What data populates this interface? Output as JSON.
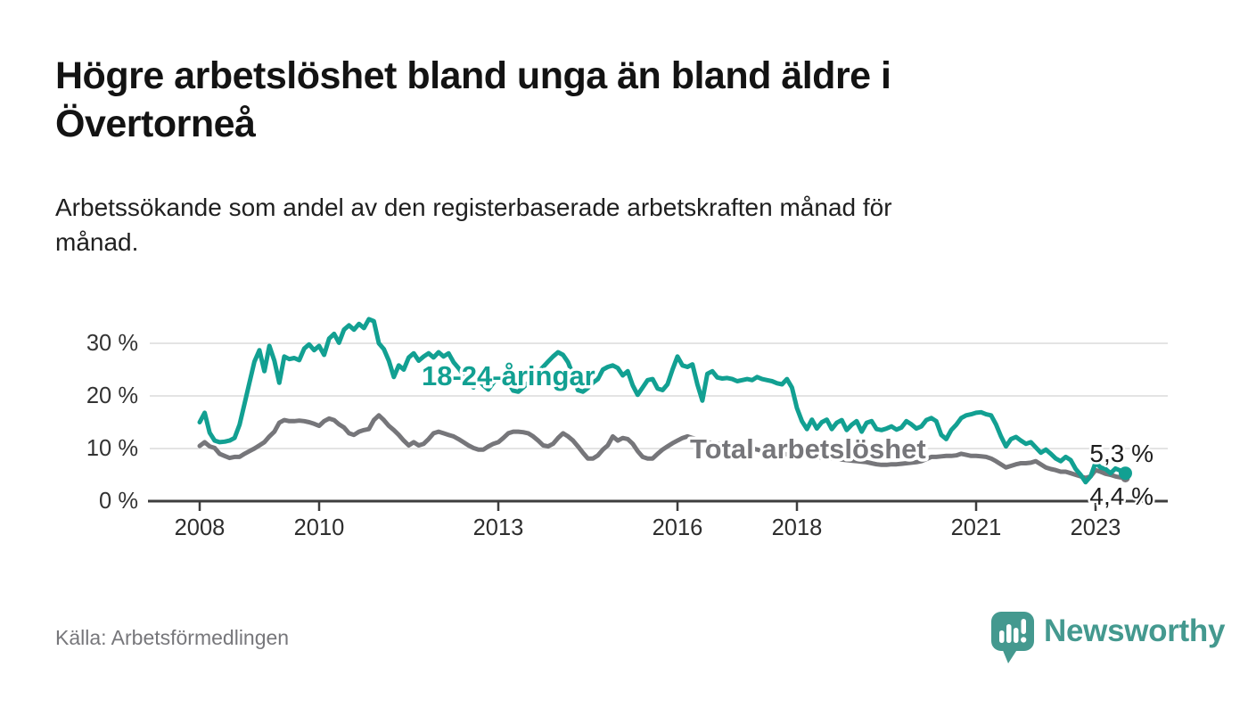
{
  "header": {
    "title_line1": "Högre arbetslöshet bland unga än bland äldre i",
    "title_line2": "Övertorneå",
    "subtitle_line1": "Arbetssökande som andel av den registerbaserade arbetskraften månad för",
    "subtitle_line2": "månad."
  },
  "footer": {
    "source": "Källa: Arbetsförmedlingen",
    "brand": "Newsworthy",
    "brand_color": "#44998f",
    "brand_icon": "speech-bubble-bar-chart-exclamation"
  },
  "chart_data": {
    "type": "line",
    "unit": "%",
    "x_monthly_start": "2008-01",
    "x_monthly_end": "2023-07",
    "x_ticks": [
      2008,
      2010,
      2013,
      2016,
      2018,
      2021,
      2023
    ],
    "y_tick_labels": [
      "30 %",
      "20 %",
      "10 %",
      "0 %"
    ],
    "ylim": [
      0,
      35
    ],
    "grid": "horizontal",
    "legend_position": "inline-labels",
    "colors": {
      "grid": "#dcdcdc",
      "axis": "#3d3d3d",
      "tick_text": "#2e2e2e"
    },
    "series": [
      {
        "id": "youth",
        "name": "18-24-åringar",
        "color": "#12a092",
        "end_label": "5,3 %",
        "end_value": 5.3,
        "values": [
          15.0,
          16.8,
          13.0,
          11.5,
          11.2,
          11.3,
          11.5,
          12.0,
          14.5,
          18.5,
          22.5,
          26.5,
          28.7,
          24.7,
          29.5,
          26.7,
          22.5,
          27.5,
          27.0,
          27.2,
          26.8,
          29.0,
          29.8,
          28.7,
          29.5,
          27.8,
          30.9,
          31.8,
          30.1,
          32.6,
          33.4,
          32.6,
          33.7,
          32.9,
          34.6,
          34.2,
          30.0,
          28.9,
          26.7,
          23.6,
          25.8,
          25.0,
          27.3,
          28.1,
          26.7,
          27.5,
          28.1,
          27.3,
          28.3,
          27.5,
          28.1,
          26.4,
          25.3,
          24.0,
          22.5,
          21.6,
          23.0,
          22.0,
          21.2,
          22.5,
          23.5,
          24.0,
          22.5,
          21.0,
          20.8,
          21.6,
          22.5,
          23.5,
          24.5,
          25.5,
          26.5,
          27.5,
          28.3,
          27.8,
          26.4,
          24.0,
          21.1,
          20.8,
          21.5,
          22.5,
          23.2,
          25.0,
          25.5,
          25.8,
          25.3,
          23.9,
          24.7,
          22.0,
          20.2,
          21.6,
          23.0,
          23.2,
          21.4,
          21.1,
          22.2,
          25.0,
          27.5,
          25.8,
          25.5,
          26.0,
          22.2,
          19.1,
          24.2,
          24.7,
          23.5,
          23.3,
          23.4,
          23.2,
          22.8,
          23.0,
          23.2,
          23.0,
          23.6,
          23.2,
          23.0,
          22.8,
          22.4,
          22.2,
          23.2,
          21.6,
          17.7,
          15.2,
          13.7,
          15.5,
          13.8,
          15.0,
          15.5,
          13.7,
          14.9,
          15.4,
          13.5,
          14.5,
          15.2,
          13.2,
          14.9,
          15.2,
          13.7,
          13.5,
          13.8,
          14.2,
          13.6,
          14.0,
          15.2,
          14.6,
          13.8,
          14.2,
          15.4,
          15.8,
          15.2,
          12.6,
          11.8,
          13.5,
          14.5,
          15.8,
          16.3,
          16.5,
          16.8,
          16.9,
          16.5,
          16.3,
          14.6,
          12.3,
          10.4,
          11.8,
          12.2,
          11.5,
          10.9,
          11.2,
          10.2,
          9.2,
          9.8,
          9.0,
          8.1,
          7.6,
          8.4,
          7.8,
          6.1,
          5.0,
          3.6,
          4.7,
          7.3,
          6.4,
          6.1,
          5.3,
          6.2,
          5.8,
          5.3
        ]
      },
      {
        "id": "total",
        "name": "Total arbetslöshet",
        "color": "#76767a",
        "end_label": "4,4 %",
        "end_value": 4.4,
        "values": [
          10.5,
          11.2,
          10.4,
          10.1,
          9.0,
          8.6,
          8.2,
          8.4,
          8.4,
          9.0,
          9.5,
          10.0,
          10.6,
          11.2,
          12.3,
          13.2,
          14.9,
          15.4,
          15.2,
          15.2,
          15.3,
          15.2,
          15.0,
          14.7,
          14.3,
          15.2,
          15.7,
          15.4,
          14.6,
          14.0,
          12.9,
          12.6,
          13.2,
          13.5,
          13.7,
          15.4,
          16.3,
          15.4,
          14.3,
          13.5,
          12.6,
          11.5,
          10.6,
          11.2,
          10.6,
          10.9,
          11.8,
          12.9,
          13.2,
          12.9,
          12.6,
          12.3,
          11.8,
          11.2,
          10.6,
          10.1,
          9.8,
          9.8,
          10.4,
          10.9,
          11.2,
          12.0,
          12.9,
          13.2,
          13.2,
          13.1,
          12.9,
          12.3,
          11.5,
          10.6,
          10.4,
          10.9,
          12.0,
          12.9,
          12.3,
          11.5,
          10.4,
          9.2,
          8.1,
          8.1,
          8.7,
          9.8,
          10.6,
          12.3,
          11.5,
          12.0,
          11.8,
          10.9,
          9.5,
          8.4,
          8.1,
          8.1,
          9.0,
          9.8,
          10.4,
          11.0,
          11.5,
          12.0,
          12.3,
          12.0,
          11.8,
          11.5,
          11.2,
          11.0,
          10.9,
          10.8,
          10.6,
          10.5,
          10.5,
          10.4,
          10.2,
          10.0,
          9.8,
          9.6,
          9.4,
          9.3,
          9.2,
          9.0,
          8.9,
          8.8,
          8.8,
          8.7,
          8.6,
          8.5,
          8.4,
          8.3,
          8.2,
          8.1,
          8.0,
          7.9,
          7.8,
          7.7,
          7.6,
          7.5,
          7.4,
          7.2,
          7.0,
          6.9,
          6.9,
          7.0,
          7.0,
          7.1,
          7.2,
          7.3,
          7.4,
          7.6,
          8.0,
          8.4,
          8.4,
          8.5,
          8.6,
          8.6,
          8.7,
          9.0,
          8.8,
          8.6,
          8.6,
          8.5,
          8.4,
          8.1,
          7.6,
          7.0,
          6.4,
          6.7,
          7.0,
          7.2,
          7.2,
          7.3,
          7.6,
          7.0,
          6.4,
          6.1,
          5.9,
          5.6,
          5.6,
          5.3,
          5.0,
          4.7,
          4.4,
          4.7,
          5.9,
          5.6,
          5.2,
          5.0,
          4.7,
          4.5,
          4.4
        ]
      }
    ]
  }
}
